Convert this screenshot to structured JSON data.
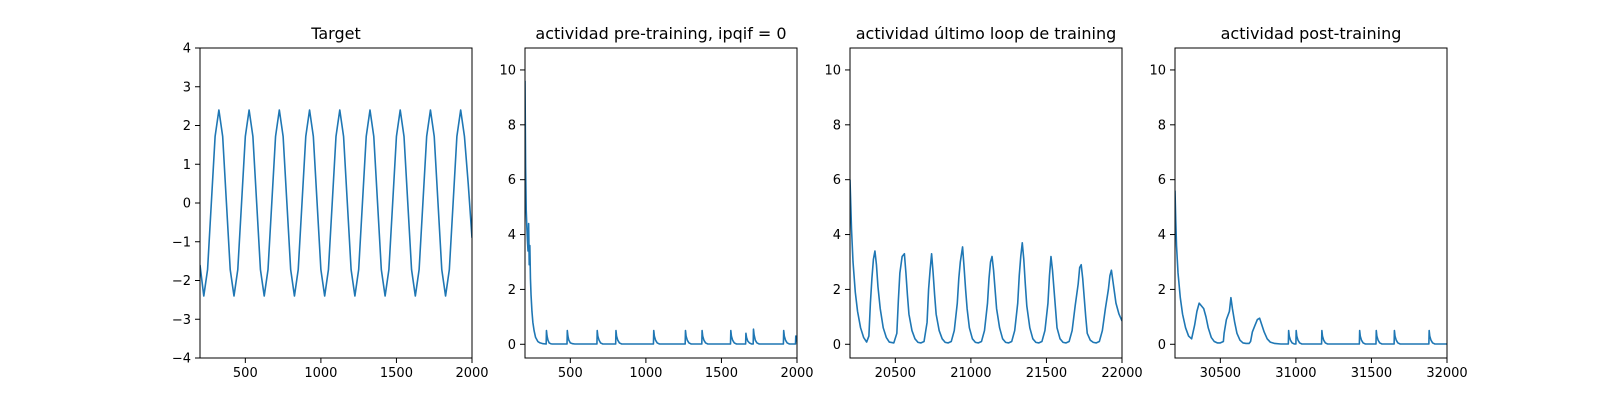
{
  "colors": {
    "series": "#1f77b4"
  },
  "chart_data": [
    {
      "type": "line",
      "title": "Target",
      "xlim": [
        200,
        2000
      ],
      "ylim": [
        -4,
        4
      ],
      "xticks": [
        500,
        1000,
        1500,
        2000
      ],
      "xtick_labels": [
        "500",
        "1000",
        "1500",
        "2000"
      ],
      "yticks": [
        -4,
        -3,
        -2,
        -1,
        0,
        1,
        2,
        3,
        4
      ],
      "ytick_labels": [
        "−4",
        "−3",
        "−2",
        "−1",
        "0",
        "1",
        "2",
        "3",
        "4"
      ],
      "series": [
        {
          "x": [
            200,
            225,
            250,
            275,
            300,
            325,
            350,
            375,
            400,
            425,
            450,
            475,
            500,
            525,
            550,
            575,
            600,
            625,
            650,
            675,
            700,
            725,
            750,
            775,
            800,
            825,
            850,
            875,
            900,
            925,
            950,
            975,
            1000,
            1025,
            1050,
            1075,
            1100,
            1125,
            1150,
            1175,
            1200,
            1225,
            1250,
            1275,
            1300,
            1325,
            1350,
            1375,
            1400,
            1425,
            1450,
            1475,
            1500,
            1525,
            1550,
            1575,
            1600,
            1625,
            1650,
            1675,
            1700,
            1725,
            1750,
            1775,
            1800,
            1825,
            1850,
            1875,
            1900,
            1925,
            1950,
            1975,
            2000
          ],
          "y": [
            -1.6,
            -2.4,
            -1.72,
            0,
            1.72,
            2.4,
            1.72,
            0,
            -1.72,
            -2.4,
            -1.72,
            0,
            1.72,
            2.4,
            1.72,
            0,
            -1.72,
            -2.4,
            -1.72,
            0,
            1.72,
            2.4,
            1.72,
            0,
            -1.72,
            -2.4,
            -1.72,
            0,
            1.72,
            2.4,
            1.72,
            0,
            -1.72,
            -2.4,
            -1.72,
            0,
            1.72,
            2.4,
            1.72,
            0,
            -1.72,
            -2.4,
            -1.72,
            0,
            1.72,
            2.4,
            1.72,
            0,
            -1.72,
            -2.4,
            -1.72,
            0,
            1.72,
            2.4,
            1.72,
            0,
            -1.72,
            -2.4,
            -1.72,
            0,
            1.72,
            2.4,
            1.72,
            0,
            -1.72,
            -2.4,
            -1.72,
            0,
            1.72,
            2.4,
            1.72,
            0.5,
            -0.9
          ]
        }
      ]
    },
    {
      "type": "line",
      "title": "actividad pre-training, ipqif = 0",
      "xlim": [
        200,
        2000
      ],
      "ylim": [
        -0.5,
        10.8
      ],
      "xticks": [
        500,
        1000,
        1500,
        2000
      ],
      "xtick_labels": [
        "500",
        "1000",
        "1500",
        "2000"
      ],
      "yticks": [
        0,
        2,
        4,
        6,
        8,
        10
      ],
      "ytick_labels": [
        "0",
        "2",
        "4",
        "6",
        "8",
        "10"
      ],
      "series": [
        {
          "x": [
            200,
            204,
            208,
            212,
            216,
            220,
            224,
            228,
            232,
            236,
            240,
            246,
            252,
            260,
            270,
            285,
            300,
            320,
            340,
            342,
            346,
            352,
            360,
            370,
            380,
            450,
            478,
            480,
            484,
            490,
            500,
            515,
            530,
            600,
            676,
            678,
            682,
            690,
            700,
            715,
            800,
            802,
            806,
            814,
            825,
            840,
            1050,
            1052,
            1056,
            1064,
            1075,
            1090,
            1260,
            1262,
            1266,
            1274,
            1285,
            1300,
            1370,
            1372,
            1376,
            1384,
            1395,
            1410,
            1560,
            1562,
            1566,
            1574,
            1585,
            1600,
            1660,
            1662,
            1666,
            1674,
            1685,
            1700,
            1710,
            1712,
            1716,
            1724,
            1735,
            1750,
            1910,
            1912,
            1916,
            1924,
            1935,
            1950,
            1990,
            1992,
            1996,
            2000
          ],
          "y": [
            9.6,
            6.5,
            4.9,
            4.3,
            3.8,
            3.4,
            4.4,
            2.9,
            3.6,
            2.4,
            1.8,
            1.2,
            0.8,
            0.5,
            0.25,
            0.1,
            0.05,
            0.02,
            0.01,
            0.5,
            0.3,
            0.15,
            0.05,
            0.02,
            0.01,
            0.01,
            0.01,
            0.5,
            0.3,
            0.15,
            0.05,
            0.02,
            0.01,
            0.01,
            0.01,
            0.5,
            0.3,
            0.15,
            0.05,
            0.01,
            0.01,
            0.5,
            0.3,
            0.15,
            0.05,
            0.01,
            0.01,
            0.5,
            0.3,
            0.15,
            0.05,
            0.01,
            0.01,
            0.5,
            0.3,
            0.15,
            0.05,
            0.01,
            0.01,
            0.5,
            0.3,
            0.15,
            0.05,
            0.01,
            0.01,
            0.5,
            0.3,
            0.15,
            0.05,
            0.01,
            0.01,
            0.4,
            0.25,
            0.12,
            0.05,
            0.01,
            0.01,
            0.55,
            0.35,
            0.15,
            0.05,
            0.01,
            0.01,
            0.5,
            0.3,
            0.15,
            0.05,
            0.01,
            0.01,
            0.3,
            0.15,
            0.1
          ]
        }
      ]
    },
    {
      "type": "line",
      "title": "actividad último loop de training",
      "xlim": [
        20200,
        22000
      ],
      "ylim": [
        -0.5,
        10.8
      ],
      "xticks": [
        20500,
        21000,
        21500,
        22000
      ],
      "xtick_labels": [
        "20500",
        "21000",
        "21500",
        "22000"
      ],
      "yticks": [
        0,
        2,
        4,
        6,
        8,
        10
      ],
      "ytick_labels": [
        "0",
        "2",
        "4",
        "6",
        "8",
        "10"
      ],
      "series": [
        {
          "x": [
            20200,
            20210,
            20220,
            20235,
            20250,
            20270,
            20290,
            20310,
            20325,
            20335,
            20345,
            20355,
            20365,
            20375,
            20385,
            20400,
            20420,
            20440,
            20460,
            20490,
            20510,
            20520,
            20530,
            20545,
            20560,
            20570,
            20580,
            20590,
            20610,
            20630,
            20650,
            20670,
            20690,
            20710,
            20720,
            20730,
            20740,
            20750,
            20760,
            20770,
            20790,
            20810,
            20830,
            20850,
            20870,
            20890,
            20910,
            20920,
            20930,
            20945,
            20955,
            20965,
            20975,
            20990,
            21010,
            21030,
            21050,
            21070,
            21090,
            21110,
            21120,
            21130,
            21140,
            21150,
            21160,
            21170,
            21190,
            21210,
            21230,
            21250,
            21270,
            21290,
            21310,
            21320,
            21330,
            21340,
            21350,
            21360,
            21370,
            21390,
            21410,
            21430,
            21450,
            21470,
            21490,
            21510,
            21520,
            21530,
            21540,
            21550,
            21560,
            21570,
            21590,
            21610,
            21630,
            21650,
            21670,
            21690,
            21710,
            21720,
            21730,
            21740,
            21750,
            21760,
            21770,
            21790,
            21810,
            21830,
            21850,
            21870,
            21890,
            21910,
            21920,
            21930,
            21940,
            21950,
            21960,
            21980,
            22000
          ],
          "y": [
            6.0,
            4.2,
            3.0,
            1.9,
            1.2,
            0.6,
            0.25,
            0.08,
            0.3,
            1.5,
            2.4,
            3.1,
            3.4,
            2.9,
            2.1,
            1.3,
            0.6,
            0.25,
            0.08,
            0.05,
            0.4,
            1.6,
            2.6,
            3.2,
            3.3,
            2.6,
            1.8,
            1.1,
            0.5,
            0.2,
            0.07,
            0.05,
            0.1,
            0.8,
            2.0,
            2.7,
            3.3,
            2.6,
            1.8,
            1.1,
            0.5,
            0.2,
            0.07,
            0.05,
            0.1,
            0.5,
            1.5,
            2.4,
            3.0,
            3.55,
            2.8,
            2.0,
            1.3,
            0.6,
            0.2,
            0.07,
            0.05,
            0.1,
            0.5,
            1.5,
            2.4,
            3.0,
            3.2,
            2.7,
            2.0,
            1.3,
            0.6,
            0.2,
            0.07,
            0.05,
            0.1,
            0.5,
            1.5,
            2.5,
            3.2,
            3.7,
            3.1,
            2.2,
            1.4,
            0.6,
            0.2,
            0.07,
            0.05,
            0.1,
            0.5,
            1.5,
            2.5,
            3.2,
            2.7,
            2.0,
            1.3,
            0.6,
            0.2,
            0.07,
            0.05,
            0.1,
            0.5,
            1.4,
            2.2,
            2.8,
            2.9,
            2.4,
            1.7,
            1.0,
            0.4,
            0.15,
            0.07,
            0.05,
            0.1,
            0.5,
            1.3,
            2.0,
            2.5,
            2.7,
            2.3,
            1.9,
            1.5,
            1.1,
            0.85
          ]
        }
      ]
    },
    {
      "type": "line",
      "title": "actividad post-training",
      "xlim": [
        30200,
        32000
      ],
      "ylim": [
        -0.5,
        10.8
      ],
      "xticks": [
        30500,
        31000,
        31500,
        32000
      ],
      "xtick_labels": [
        "30500",
        "31000",
        "31500",
        "32000"
      ],
      "yticks": [
        0,
        2,
        4,
        6,
        8,
        10
      ],
      "ytick_labels": [
        "0",
        "2",
        "4",
        "6",
        "8",
        "10"
      ],
      "series": [
        {
          "x": [
            30200,
            30205,
            30210,
            30220,
            30235,
            30250,
            30270,
            30290,
            30310,
            30330,
            30345,
            30360,
            30375,
            30390,
            30405,
            30420,
            30440,
            30460,
            30480,
            30500,
            30520,
            30525,
            30540,
            30560,
            30570,
            30580,
            30595,
            30610,
            30630,
            30650,
            30670,
            30690,
            30700,
            30712,
            30730,
            30745,
            30760,
            30775,
            30790,
            30810,
            30830,
            30860,
            30900,
            30950,
            30952,
            30956,
            30964,
            30975,
            30990,
            31000,
            31002,
            31006,
            31014,
            31025,
            31040,
            31170,
            31172,
            31176,
            31184,
            31195,
            31210,
            31420,
            31422,
            31426,
            31434,
            31445,
            31460,
            31530,
            31532,
            31536,
            31544,
            31555,
            31570,
            31650,
            31652,
            31656,
            31664,
            31675,
            31690,
            31880,
            31882,
            31886,
            31894,
            31905,
            31920,
            32000
          ],
          "y": [
            5.6,
            4.5,
            3.6,
            2.6,
            1.7,
            1.1,
            0.6,
            0.3,
            0.2,
            0.7,
            1.2,
            1.5,
            1.4,
            1.3,
            1.0,
            0.6,
            0.25,
            0.1,
            0.05,
            0.05,
            0.1,
            0.4,
            0.9,
            1.2,
            1.7,
            1.3,
            0.8,
            0.4,
            0.15,
            0.05,
            0.03,
            0.03,
            0.1,
            0.45,
            0.7,
            0.9,
            0.95,
            0.7,
            0.45,
            0.2,
            0.08,
            0.03,
            0.01,
            0.01,
            0.5,
            0.3,
            0.15,
            0.05,
            0.01,
            0.01,
            0.5,
            0.3,
            0.15,
            0.05,
            0.01,
            0.01,
            0.5,
            0.3,
            0.15,
            0.05,
            0.01,
            0.01,
            0.5,
            0.3,
            0.15,
            0.05,
            0.01,
            0.01,
            0.5,
            0.3,
            0.15,
            0.05,
            0.01,
            0.01,
            0.5,
            0.3,
            0.15,
            0.05,
            0.01,
            0.01,
            0.5,
            0.3,
            0.15,
            0.05,
            0.01,
            0.01
          ]
        }
      ]
    }
  ]
}
